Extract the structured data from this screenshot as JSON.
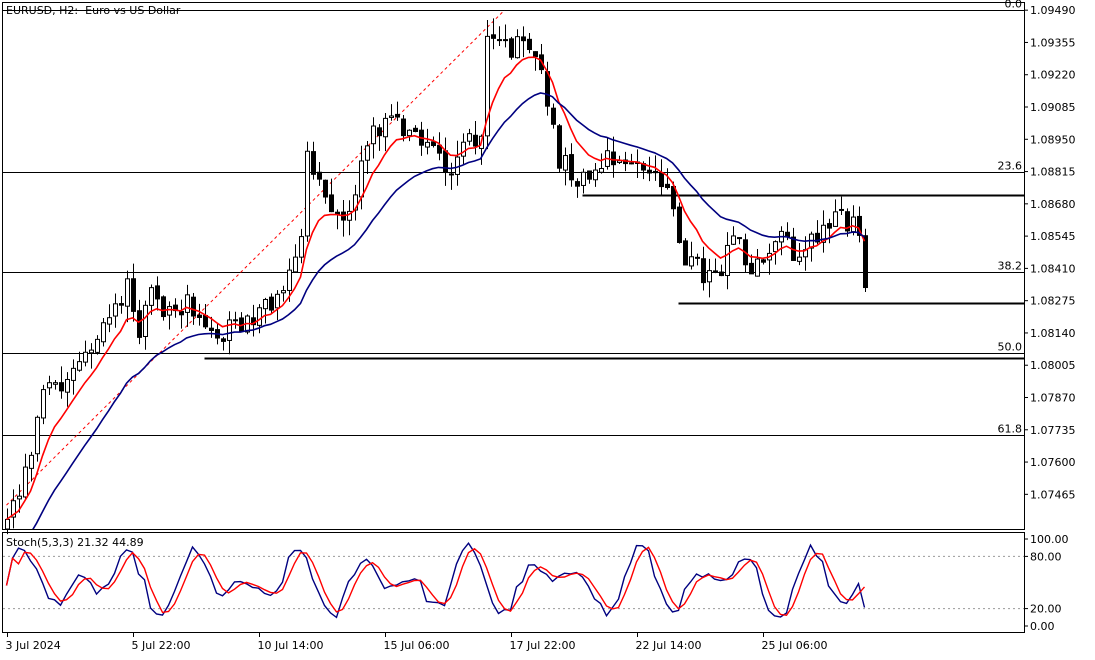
{
  "header": {
    "symbol": "EURUSD",
    "timeframe": "H2:",
    "description": "Euro vs US Dollar"
  },
  "chart_data": [
    {
      "type": "candlestick",
      "title": "EURUSD, H2:  Euro vs US Dollar",
      "y_ticks": [
        "1.09490",
        "1.09355",
        "1.09220",
        "1.09085",
        "1.08950",
        "1.08815",
        "1.08680",
        "1.08545",
        "1.08410",
        "1.08275",
        "1.08140",
        "1.08005",
        "1.07870",
        "1.07735",
        "1.07600",
        "1.07465"
      ],
      "x_ticks": [
        "3 Jul 2024",
        "5 Jul 22:00",
        "10 Jul 14:00",
        "15 Jul 06:00",
        "17 Jul 22:00",
        "22 Jul 14:00",
        "25 Jul 06:00"
      ],
      "ylim": [
        1.0732,
        1.0952
      ],
      "grid": false,
      "fibonacci": [
        {
          "label": "0.0",
          "price": 1.0949
        },
        {
          "label": "23.6",
          "price": 1.08815
        },
        {
          "label": "38.2",
          "price": 1.08395
        },
        {
          "label": "50.0",
          "price": 1.08055
        },
        {
          "label": "61.8",
          "price": 1.07715
        }
      ],
      "horizontal_levels": [
        {
          "price": 1.08715,
          "from_index": 96
        },
        {
          "price": 1.08265,
          "from_index": 112
        },
        {
          "price": 1.08035,
          "from_index": 33
        }
      ],
      "close_anchors": [
        [
          0,
          1.0736
        ],
        [
          4,
          1.0762
        ],
        [
          6,
          1.0788
        ],
        [
          10,
          1.0792
        ],
        [
          15,
          1.0812
        ],
        [
          20,
          1.0835
        ],
        [
          22,
          1.0817
        ],
        [
          24,
          1.0828
        ],
        [
          26,
          1.0825
        ],
        [
          30,
          1.0827
        ],
        [
          33,
          1.0815
        ],
        [
          36,
          1.0813
        ],
        [
          40,
          1.082
        ],
        [
          44,
          1.0825
        ],
        [
          47,
          1.0838
        ],
        [
          49,
          1.0858
        ],
        [
          50,
          1.0888
        ],
        [
          53,
          1.0867
        ],
        [
          57,
          1.0862
        ],
        [
          60,
          1.0897
        ],
        [
          64,
          1.0902
        ],
        [
          67,
          1.0899
        ],
        [
          71,
          1.0891
        ],
        [
          74,
          1.0883
        ],
        [
          76,
          1.0894
        ],
        [
          79,
          1.0898
        ],
        [
          80,
          1.0935
        ],
        [
          83,
          1.0935
        ],
        [
          86,
          1.0932
        ],
        [
          89,
          1.0925
        ],
        [
          92,
          1.0887
        ],
        [
          96,
          1.0878
        ],
        [
          100,
          1.089
        ],
        [
          104,
          1.0885
        ],
        [
          108,
          1.0882
        ],
        [
          111,
          1.0865
        ],
        [
          113,
          1.0846
        ],
        [
          116,
          1.0838
        ],
        [
          119,
          1.0837
        ],
        [
          121,
          1.0855
        ],
        [
          124,
          1.0838
        ],
        [
          126,
          1.0845
        ],
        [
          129,
          1.0857
        ],
        [
          131,
          1.0843
        ],
        [
          133,
          1.0852
        ],
        [
          135,
          1.0856
        ],
        [
          138,
          1.0863
        ],
        [
          140,
          1.086
        ],
        [
          142,
          1.0857
        ],
        [
          143,
          1.0833
        ]
      ],
      "indicators": [
        {
          "name": "MA fast",
          "color": "#ff0000"
        },
        {
          "name": "MA slow",
          "color": "#000080"
        }
      ]
    },
    {
      "type": "line",
      "title": "Stoch(5,3,3) 21.32 44.89",
      "y_ticks": [
        "100.00",
        "80.00",
        "20.00",
        "0.00"
      ],
      "ylim": [
        0,
        100
      ],
      "levels": [
        20,
        80
      ],
      "series": [
        {
          "name": "%K",
          "color": "#000080"
        },
        {
          "name": "%D",
          "color": "#ff0000"
        }
      ]
    }
  ]
}
